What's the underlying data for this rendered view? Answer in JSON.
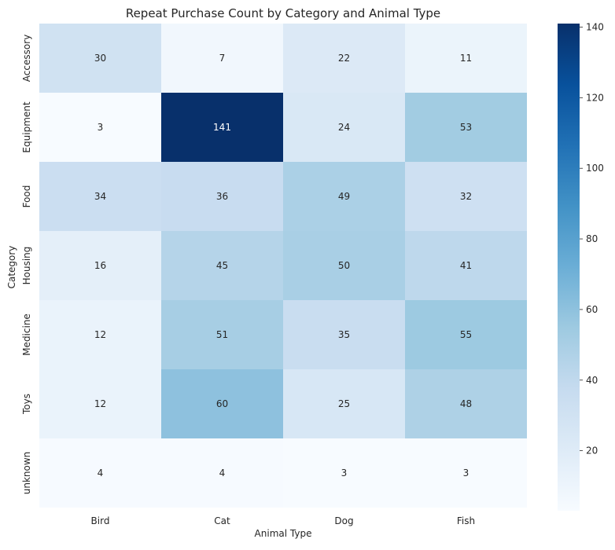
{
  "chart_data": {
    "type": "heatmap",
    "title": "Repeat Purchase Count by Category and Animal Type",
    "xlabel": "Animal Type",
    "ylabel": "Category",
    "x_categories": [
      "Bird",
      "Cat",
      "Dog",
      "Fish"
    ],
    "y_categories": [
      "Accessory",
      "Equipment",
      "Food",
      "Housing",
      "Medicine",
      "Toys",
      "unknown"
    ],
    "values": [
      [
        30,
        7,
        22,
        11
      ],
      [
        3,
        141,
        24,
        53
      ],
      [
        34,
        36,
        49,
        32
      ],
      [
        16,
        45,
        50,
        41
      ],
      [
        12,
        51,
        35,
        55
      ],
      [
        12,
        60,
        25,
        48
      ],
      [
        4,
        4,
        3,
        3
      ]
    ],
    "colorscale": "Blues",
    "vmin": 3,
    "vmax": 141,
    "colorbar_ticks": [
      20,
      40,
      60,
      80,
      100,
      120,
      140
    ],
    "annotations": true,
    "grid": false
  }
}
